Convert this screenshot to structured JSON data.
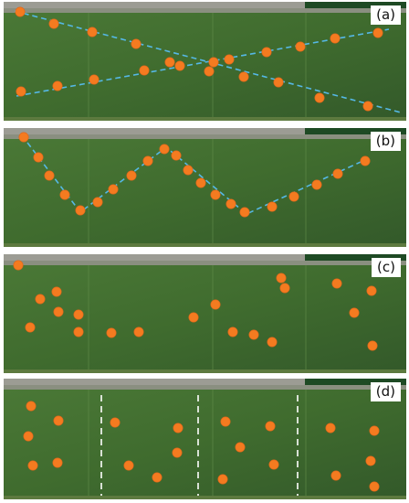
{
  "colors": {
    "field_green": "#3f6b2e",
    "field_dark": "#33592a",
    "road_gray": "#9c9c94",
    "edge_gray": "#8a8f80",
    "marker_orange": "#f47b20",
    "line_blue": "#55b8e6",
    "line_white": "#ffffff"
  },
  "panels": [
    {
      "label": "(a)",
      "pattern": "diagonal-cross",
      "points": [
        [
          18,
          11
        ],
        [
          55,
          24
        ],
        [
          97,
          33
        ],
        [
          145,
          46
        ],
        [
          182,
          66
        ],
        [
          225,
          76
        ],
        [
          263,
          82
        ],
        [
          301,
          88
        ],
        [
          346,
          105
        ],
        [
          399,
          114
        ],
        [
          19,
          98
        ],
        [
          59,
          92
        ],
        [
          99,
          85
        ],
        [
          154,
          75
        ],
        [
          193,
          70
        ],
        [
          230,
          66
        ],
        [
          247,
          63
        ],
        [
          288,
          55
        ],
        [
          325,
          49
        ],
        [
          363,
          40
        ],
        [
          410,
          34
        ]
      ],
      "lines": [
        [
          [
            12,
            10
          ],
          [
            435,
            121
          ]
        ],
        [
          [
            14,
            103
          ],
          [
            422,
            30
          ]
        ]
      ]
    },
    {
      "label": "(b)",
      "pattern": "zigzag",
      "points": [
        [
          22,
          10
        ],
        [
          38,
          32
        ],
        [
          50,
          52
        ],
        [
          67,
          73
        ],
        [
          84,
          90
        ],
        [
          103,
          81
        ],
        [
          120,
          67
        ],
        [
          140,
          52
        ],
        [
          158,
          36
        ],
        [
          176,
          23
        ],
        [
          189,
          30
        ],
        [
          202,
          46
        ],
        [
          216,
          60
        ],
        [
          232,
          73
        ],
        [
          249,
          83
        ],
        [
          264,
          92
        ],
        [
          294,
          86
        ],
        [
          318,
          75
        ],
        [
          343,
          62
        ],
        [
          366,
          50
        ],
        [
          396,
          36
        ]
      ],
      "polyline": [
        [
          20,
          8
        ],
        [
          84,
          92
        ],
        [
          178,
          21
        ],
        [
          266,
          94
        ],
        [
          400,
          33
        ]
      ]
    },
    {
      "label": "(c)",
      "pattern": "random",
      "points": [
        [
          16,
          12
        ],
        [
          58,
          41
        ],
        [
          40,
          49
        ],
        [
          60,
          63
        ],
        [
          82,
          66
        ],
        [
          29,
          80
        ],
        [
          82,
          85
        ],
        [
          118,
          86
        ],
        [
          148,
          85
        ],
        [
          208,
          69
        ],
        [
          232,
          55
        ],
        [
          251,
          85
        ],
        [
          274,
          88
        ],
        [
          294,
          96
        ],
        [
          304,
          26
        ],
        [
          308,
          37
        ],
        [
          365,
          32
        ],
        [
          403,
          40
        ],
        [
          384,
          64
        ],
        [
          404,
          100
        ]
      ]
    },
    {
      "label": "(d)",
      "pattern": "stratified",
      "points": [
        [
          30,
          30
        ],
        [
          60,
          46
        ],
        [
          27,
          63
        ],
        [
          32,
          95
        ],
        [
          59,
          92
        ],
        [
          122,
          48
        ],
        [
          137,
          95
        ],
        [
          168,
          108
        ],
        [
          191,
          54
        ],
        [
          190,
          81
        ],
        [
          243,
          47
        ],
        [
          259,
          75
        ],
        [
          292,
          52
        ],
        [
          240,
          110
        ],
        [
          296,
          94
        ],
        [
          358,
          54
        ],
        [
          406,
          57
        ],
        [
          364,
          106
        ],
        [
          402,
          90
        ],
        [
          406,
          118
        ]
      ],
      "dividers": [
        107,
        213,
        322
      ]
    }
  ]
}
